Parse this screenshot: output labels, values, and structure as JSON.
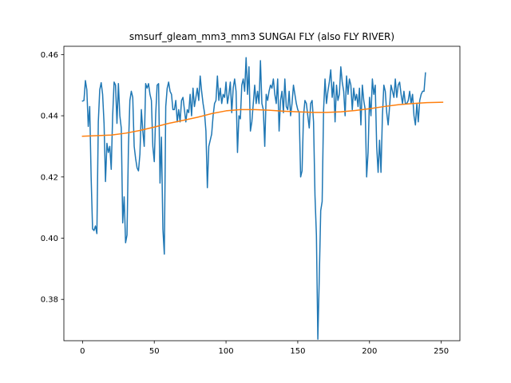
{
  "chart_data": {
    "type": "line",
    "title": "smsurf_gleam_mm3_mm3 SUNGAI FLY (also FLY RIVER)",
    "xlabel": "",
    "ylabel": "",
    "xlim": [
      -13,
      263
    ],
    "ylim": [
      0.3665,
      0.4627
    ],
    "xticks": [
      0,
      50,
      100,
      150,
      200,
      250
    ],
    "yticks": [
      0.38,
      0.4,
      0.42,
      0.44,
      0.46
    ],
    "ytick_labels": [
      "0.38",
      "0.40",
      "0.42",
      "0.44",
      "0.46"
    ],
    "grid": false,
    "legend": "none",
    "series": [
      {
        "color": "#1f77b4",
        "points": [
          [
            0,
            0.4448
          ],
          [
            1,
            0.445
          ],
          [
            2,
            0.4515
          ],
          [
            3,
            0.4485
          ],
          [
            4,
            0.4365
          ],
          [
            5,
            0.443
          ],
          [
            6,
            0.42
          ],
          [
            7,
            0.403
          ],
          [
            8,
            0.4025
          ],
          [
            9,
            0.404
          ],
          [
            10,
            0.4015
          ],
          [
            11,
            0.438
          ],
          [
            12,
            0.4485
          ],
          [
            13,
            0.4508
          ],
          [
            14,
            0.447
          ],
          [
            15,
            0.4375
          ],
          [
            16,
            0.4185
          ],
          [
            17,
            0.431
          ],
          [
            18,
            0.428
          ],
          [
            19,
            0.43
          ],
          [
            20,
            0.4225
          ],
          [
            21,
            0.44
          ],
          [
            22,
            0.451
          ],
          [
            23,
            0.45
          ],
          [
            24,
            0.4375
          ],
          [
            25,
            0.4505
          ],
          [
            26,
            0.44
          ],
          [
            27,
            0.436
          ],
          [
            28,
            0.405
          ],
          [
            29,
            0.4135
          ],
          [
            30,
            0.3985
          ],
          [
            31,
            0.401
          ],
          [
            32,
            0.43
          ],
          [
            33,
            0.445
          ],
          [
            34,
            0.448
          ],
          [
            35,
            0.446
          ],
          [
            36,
            0.43
          ],
          [
            37,
            0.426
          ],
          [
            38,
            0.423
          ],
          [
            39,
            0.422
          ],
          [
            40,
            0.4275
          ],
          [
            41,
            0.442
          ],
          [
            42,
            0.435
          ],
          [
            43,
            0.43
          ],
          [
            44,
            0.4505
          ],
          [
            45,
            0.449
          ],
          [
            46,
            0.4505
          ],
          [
            47,
            0.447
          ],
          [
            48,
            0.445
          ],
          [
            49,
            0.43
          ],
          [
            50,
            0.425
          ],
          [
            51,
            0.4405
          ],
          [
            52,
            0.45
          ],
          [
            53,
            0.4505
          ],
          [
            54,
            0.418
          ],
          [
            55,
            0.433
          ],
          [
            56,
            0.403
          ],
          [
            57,
            0.3948
          ],
          [
            58,
            0.443
          ],
          [
            59,
            0.449
          ],
          [
            60,
            0.451
          ],
          [
            61,
            0.448
          ],
          [
            62,
            0.447
          ],
          [
            63,
            0.442
          ],
          [
            64,
            0.442
          ],
          [
            65,
            0.445
          ],
          [
            66,
            0.438
          ],
          [
            67,
            0.442
          ],
          [
            68,
            0.438
          ],
          [
            69,
            0.445
          ],
          [
            70,
            0.446
          ],
          [
            71,
            0.442
          ],
          [
            72,
            0.438
          ],
          [
            73,
            0.442
          ],
          [
            74,
            0.441
          ],
          [
            75,
            0.447
          ],
          [
            76,
            0.44
          ],
          [
            77,
            0.449
          ],
          [
            78,
            0.443
          ],
          [
            79,
            0.446
          ],
          [
            80,
            0.449
          ],
          [
            81,
            0.445
          ],
          [
            82,
            0.453
          ],
          [
            83,
            0.448
          ],
          [
            84,
            0.444
          ],
          [
            85,
            0.441
          ],
          [
            86,
            0.435
          ],
          [
            87,
            0.4165
          ],
          [
            88,
            0.43
          ],
          [
            89,
            0.432
          ],
          [
            90,
            0.434
          ],
          [
            91,
            0.44
          ],
          [
            92,
            0.444
          ],
          [
            93,
            0.445
          ],
          [
            94,
            0.453
          ],
          [
            95,
            0.445
          ],
          [
            96,
            0.449
          ],
          [
            97,
            0.444
          ],
          [
            98,
            0.447
          ],
          [
            99,
            0.446
          ],
          [
            100,
            0.451
          ],
          [
            101,
            0.444
          ],
          [
            102,
            0.447
          ],
          [
            103,
            0.451
          ],
          [
            104,
            0.441
          ],
          [
            105,
            0.449
          ],
          [
            106,
            0.452
          ],
          [
            107,
            0.448
          ],
          [
            108,
            0.428
          ],
          [
            109,
            0.44
          ],
          [
            110,
            0.439
          ],
          [
            111,
            0.45
          ],
          [
            112,
            0.452
          ],
          [
            113,
            0.448
          ],
          [
            114,
            0.459
          ],
          [
            115,
            0.447
          ],
          [
            116,
            0.456
          ],
          [
            117,
            0.435
          ],
          [
            118,
            0.438
          ],
          [
            119,
            0.444
          ],
          [
            120,
            0.45
          ],
          [
            121,
            0.444
          ],
          [
            122,
            0.448
          ],
          [
            123,
            0.444
          ],
          [
            124,
            0.458
          ],
          [
            125,
            0.444
          ],
          [
            126,
            0.442
          ],
          [
            127,
            0.43
          ],
          [
            128,
            0.447
          ],
          [
            129,
            0.445
          ],
          [
            130,
            0.448
          ],
          [
            131,
            0.45
          ],
          [
            132,
            0.449
          ],
          [
            133,
            0.452
          ],
          [
            134,
            0.447
          ],
          [
            135,
            0.444
          ],
          [
            136,
            0.452
          ],
          [
            137,
            0.435
          ],
          [
            138,
            0.445
          ],
          [
            139,
            0.448
          ],
          [
            140,
            0.441
          ],
          [
            141,
            0.452
          ],
          [
            142,
            0.443
          ],
          [
            143,
            0.442
          ],
          [
            144,
            0.448
          ],
          [
            145,
            0.44
          ],
          [
            146,
            0.444
          ],
          [
            147,
            0.45
          ],
          [
            148,
            0.447
          ],
          [
            149,
            0.444
          ],
          [
            150,
            0.442
          ],
          [
            151,
            0.441
          ],
          [
            152,
            0.42
          ],
          [
            153,
            0.422
          ],
          [
            154,
            0.44
          ],
          [
            155,
            0.445
          ],
          [
            156,
            0.444
          ],
          [
            157,
            0.44
          ],
          [
            158,
            0.436
          ],
          [
            159,
            0.444
          ],
          [
            160,
            0.445
          ],
          [
            161,
            0.438
          ],
          [
            162,
            0.414
          ],
          [
            163,
            0.401
          ],
          [
            164,
            0.367
          ],
          [
            165,
            0.387
          ],
          [
            166,
            0.409
          ],
          [
            167,
            0.412
          ],
          [
            168,
            0.442
          ],
          [
            169,
            0.452
          ],
          [
            170,
            0.444
          ],
          [
            171,
            0.448
          ],
          [
            172,
            0.451
          ],
          [
            173,
            0.455
          ],
          [
            174,
            0.446
          ],
          [
            175,
            0.451
          ],
          [
            176,
            0.438
          ],
          [
            177,
            0.45
          ],
          [
            178,
            0.445
          ],
          [
            179,
            0.447
          ],
          [
            180,
            0.456
          ],
          [
            181,
            0.451
          ],
          [
            182,
            0.448
          ],
          [
            183,
            0.44
          ],
          [
            184,
            0.453
          ],
          [
            185,
            0.447
          ],
          [
            186,
            0.452
          ],
          [
            187,
            0.45
          ],
          [
            188,
            0.442
          ],
          [
            189,
            0.449
          ],
          [
            190,
            0.445
          ],
          [
            191,
            0.447
          ],
          [
            192,
            0.443
          ],
          [
            193,
            0.449
          ],
          [
            194,
            0.437
          ],
          [
            195,
            0.45
          ],
          [
            196,
            0.445
          ],
          [
            197,
            0.442
          ],
          [
            198,
            0.42
          ],
          [
            199,
            0.428
          ],
          [
            200,
            0.446
          ],
          [
            201,
            0.44
          ],
          [
            202,
            0.452
          ],
          [
            203,
            0.447
          ],
          [
            204,
            0.45
          ],
          [
            205,
            0.43
          ],
          [
            206,
            0.4215
          ],
          [
            207,
            0.432
          ],
          [
            208,
            0.4215
          ],
          [
            209,
            0.44
          ],
          [
            210,
            0.45
          ],
          [
            211,
            0.448
          ],
          [
            212,
            0.441
          ],
          [
            213,
            0.437
          ],
          [
            214,
            0.443
          ],
          [
            215,
            0.45
          ],
          [
            216,
            0.448
          ],
          [
            217,
            0.446
          ],
          [
            218,
            0.452
          ],
          [
            219,
            0.446
          ],
          [
            220,
            0.45
          ],
          [
            221,
            0.451
          ],
          [
            222,
            0.447
          ],
          [
            223,
            0.444
          ],
          [
            224,
            0.448
          ],
          [
            225,
            0.444
          ],
          [
            226,
            0.444
          ],
          [
            227,
            0.445
          ],
          [
            228,
            0.448
          ],
          [
            229,
            0.444
          ],
          [
            230,
            0.447
          ],
          [
            231,
            0.44
          ],
          [
            232,
            0.437
          ],
          [
            233,
            0.444
          ],
          [
            234,
            0.438
          ],
          [
            235,
            0.445
          ],
          [
            236,
            0.447
          ],
          [
            237,
            0.448
          ],
          [
            238,
            0.448
          ],
          [
            239,
            0.454
          ]
        ]
      },
      {
        "color": "#ff7f0e",
        "points": [
          [
            0,
            0.4333
          ],
          [
            10,
            0.4335
          ],
          [
            20,
            0.4337
          ],
          [
            30,
            0.4343
          ],
          [
            40,
            0.4352
          ],
          [
            50,
            0.4363
          ],
          [
            60,
            0.4375
          ],
          [
            70,
            0.4385
          ],
          [
            80,
            0.4395
          ],
          [
            90,
            0.4407
          ],
          [
            100,
            0.4416
          ],
          [
            110,
            0.442
          ],
          [
            120,
            0.442
          ],
          [
            130,
            0.4418
          ],
          [
            140,
            0.4415
          ],
          [
            150,
            0.4413
          ],
          [
            160,
            0.4411
          ],
          [
            170,
            0.4411
          ],
          [
            180,
            0.4413
          ],
          [
            190,
            0.4417
          ],
          [
            200,
            0.4423
          ],
          [
            210,
            0.443
          ],
          [
            220,
            0.4436
          ],
          [
            230,
            0.444
          ],
          [
            240,
            0.4443
          ],
          [
            251,
            0.4444
          ]
        ]
      }
    ]
  }
}
